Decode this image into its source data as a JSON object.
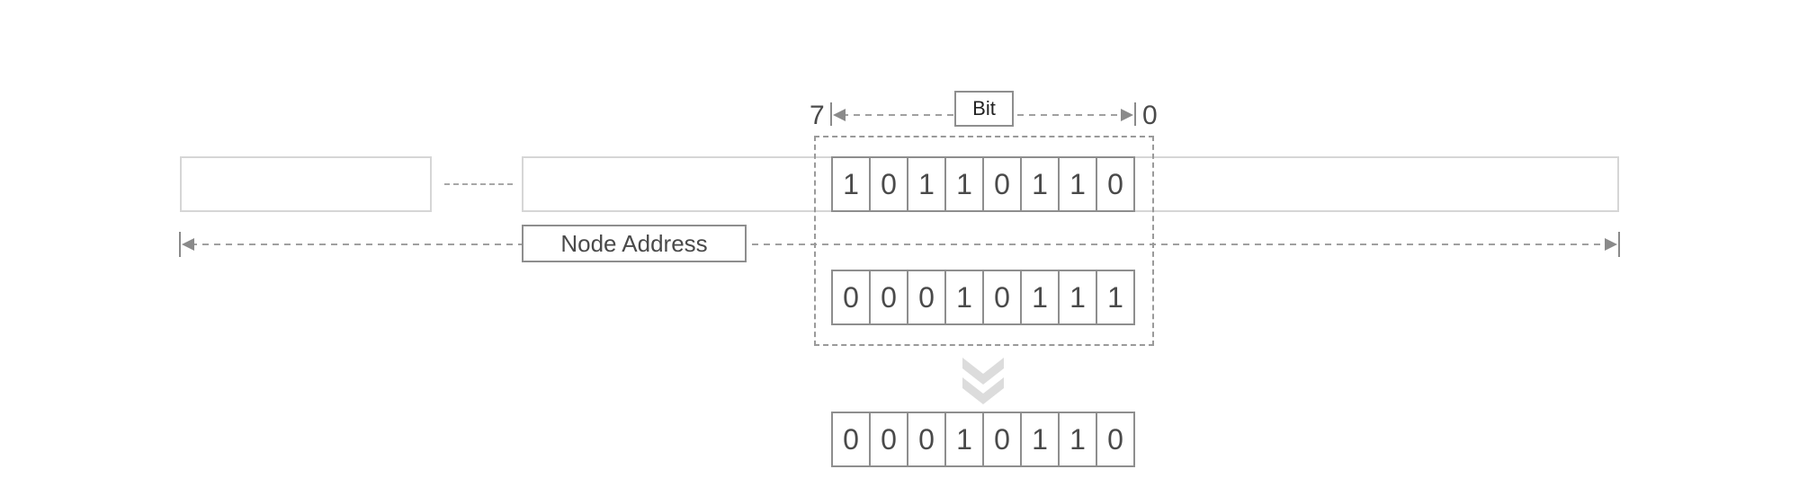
{
  "diagram": {
    "bit_range": {
      "label": "Bit",
      "msb": "7",
      "lsb": "0"
    },
    "node_address": {
      "label": "Node Address"
    },
    "rows": {
      "byte_top": [
        "1",
        "0",
        "1",
        "1",
        "0",
        "1",
        "1",
        "0"
      ],
      "byte_mask": [
        "0",
        "0",
        "0",
        "1",
        "0",
        "1",
        "1",
        "1"
      ],
      "byte_result": [
        "0",
        "0",
        "0",
        "1",
        "0",
        "1",
        "1",
        "0"
      ]
    }
  }
}
